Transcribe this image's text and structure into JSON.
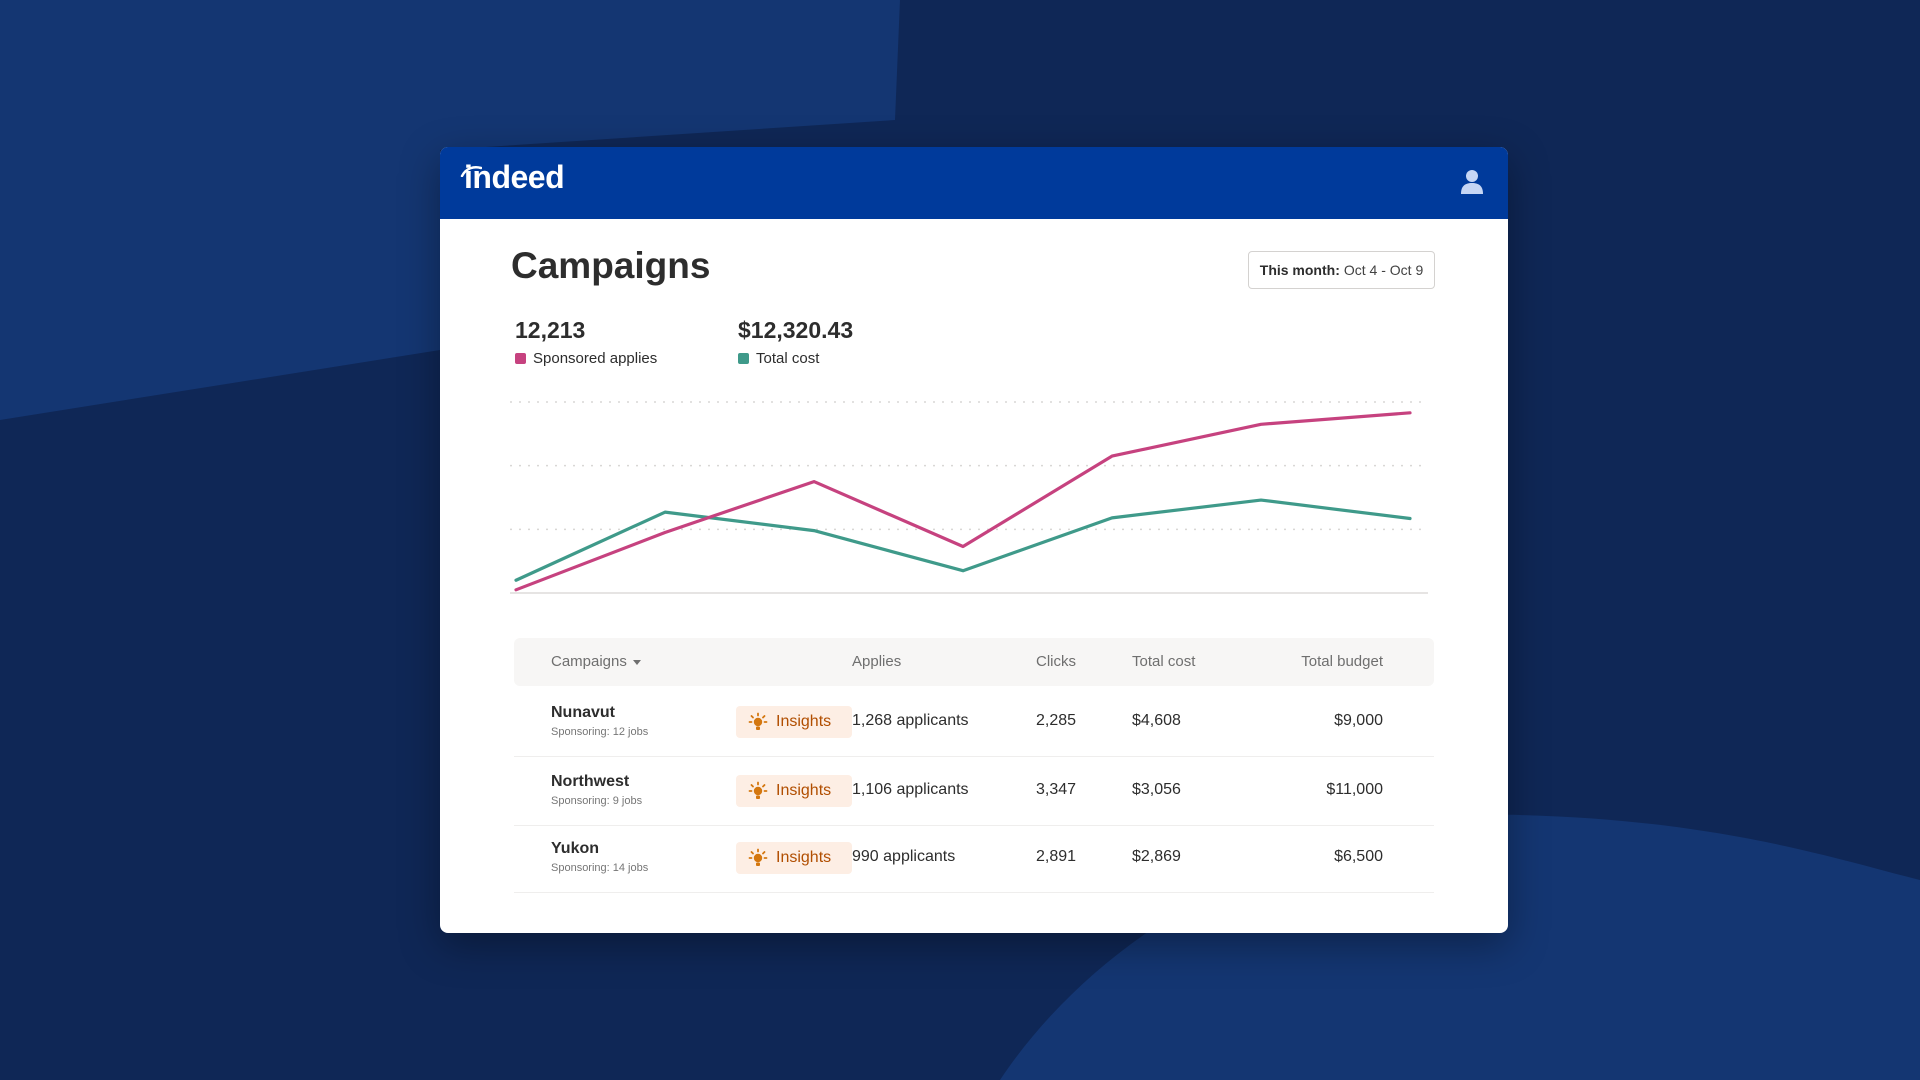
{
  "app": {
    "logo_text": "indeed"
  },
  "colors": {
    "header_bg": "#003a9b",
    "sponsored_applies": "#c6427f",
    "total_cost": "#3f9a8a",
    "insights_text": "#b14e00",
    "insights_bg": "#fdeee4"
  },
  "page": {
    "title": "Campaigns",
    "date_range": {
      "label": "This month:",
      "value": "Oct 4 - Oct 9"
    }
  },
  "stats": [
    {
      "value": "12,213",
      "label": "Sponsored applies"
    },
    {
      "value": "$12,320.43",
      "label": "Total cost"
    }
  ],
  "chart_data": {
    "type": "line",
    "title": "",
    "xlabel": "",
    "ylabel": "",
    "x": [
      1,
      2,
      3,
      4,
      5,
      6,
      7
    ],
    "ylim": [
      0,
      30
    ],
    "grid": true,
    "series": [
      {
        "name": "Sponsored applies",
        "color": "#c6427f",
        "values": [
          0.5,
          9.5,
          17.5,
          7.3,
          21.5,
          26.5,
          28.3
        ]
      },
      {
        "name": "Total cost",
        "color": "#3f9a8a",
        "values": [
          2.0,
          12.7,
          9.8,
          3.5,
          11.8,
          14.6,
          11.7
        ]
      }
    ]
  },
  "table": {
    "headers": {
      "campaigns": "Campaigns",
      "applies": "Applies",
      "clicks": "Clicks",
      "total_cost": "Total cost",
      "total_budget": "Total budget"
    },
    "rows": [
      {
        "name": "Nunavut",
        "sub": "Sponsoring: 12 jobs",
        "insights": "Insights",
        "applies": "1,268 applicants",
        "clicks": "2,285",
        "total_cost": "$4,608",
        "total_budget": "$9,000"
      },
      {
        "name": "Northwest",
        "sub": "Sponsoring: 9 jobs",
        "insights": "Insights",
        "applies": "1,106 applicants",
        "clicks": "3,347",
        "total_cost": "$3,056",
        "total_budget": "$11,000"
      },
      {
        "name": "Yukon",
        "sub": "Sponsoring: 14 jobs",
        "insights": "Insights",
        "applies": "990 applicants",
        "clicks": "2,891",
        "total_cost": "$2,869",
        "total_budget": "$6,500"
      }
    ]
  }
}
